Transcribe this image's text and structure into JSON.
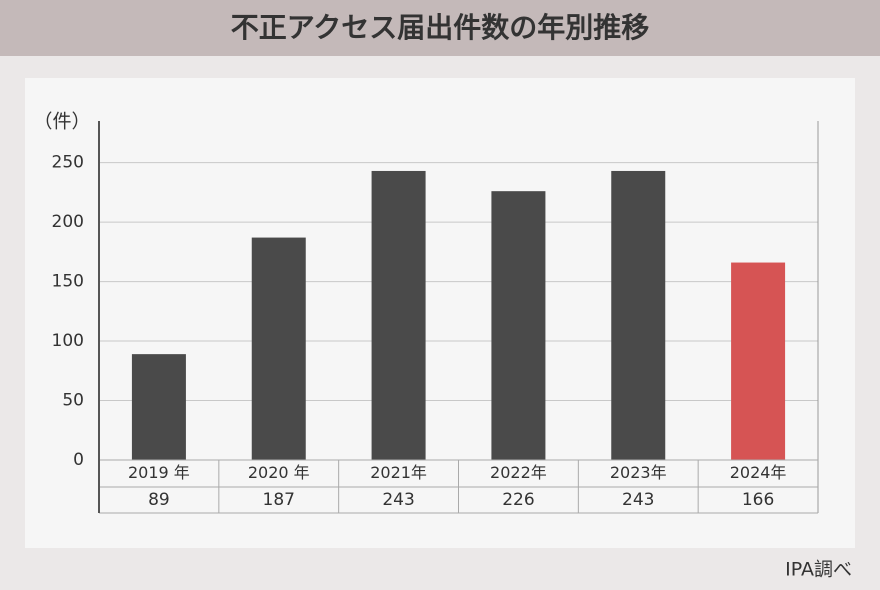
{
  "chart_data": {
    "type": "bar",
    "title": "不正アクセス届出件数の年別推移",
    "y_label": "（件）",
    "categories": [
      "2019 年",
      "2020 年",
      "2021年",
      "2022年",
      "2023年",
      "2024年"
    ],
    "values": [
      89,
      187,
      243,
      226,
      243,
      166
    ],
    "colors": [
      "#4a4a4a",
      "#4a4a4a",
      "#4a4a4a",
      "#4a4a4a",
      "#4a4a4a",
      "#d65454"
    ],
    "ylim": [
      0,
      285
    ],
    "yticks": [
      0,
      50,
      100,
      150,
      200,
      250
    ],
    "grid": true,
    "source": "IPA調べ"
  }
}
